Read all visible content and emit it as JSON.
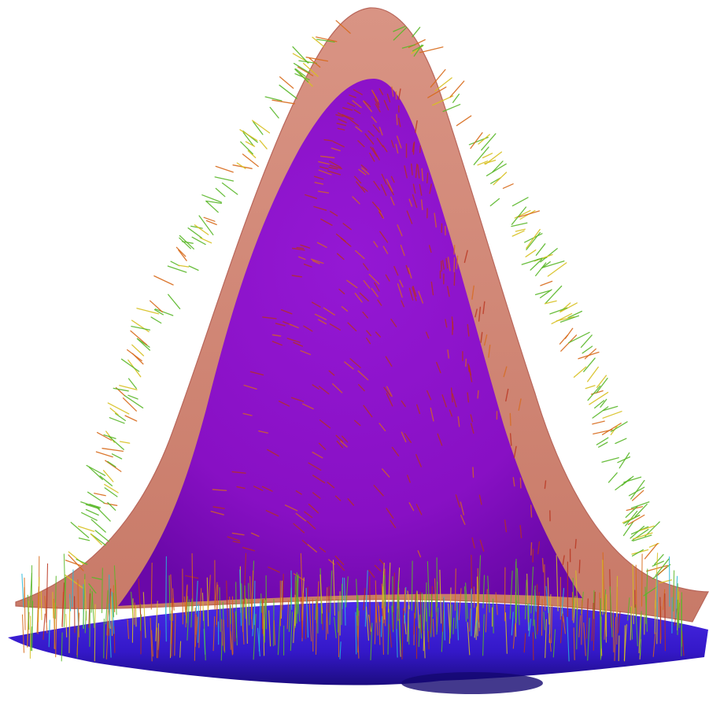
{
  "image": {
    "subject": "3d-gaussian-surface-with-normal-vectors",
    "colors": {
      "background": "#ffffff",
      "outer_surface": "#d48a7a",
      "outer_surface_edge": "#b8665a",
      "inner_surface": "#8a10c8",
      "inner_surface_dark": "#6a08a8",
      "base_plane": "#3a1ad8",
      "base_plane_dark": "#20108a",
      "vector_green": "#5ab82a",
      "vector_orange": "#d86a1a",
      "vector_red": "#b8301a",
      "vector_yellow": "#d8c020",
      "vector_cyan": "#28b8d8"
    }
  }
}
